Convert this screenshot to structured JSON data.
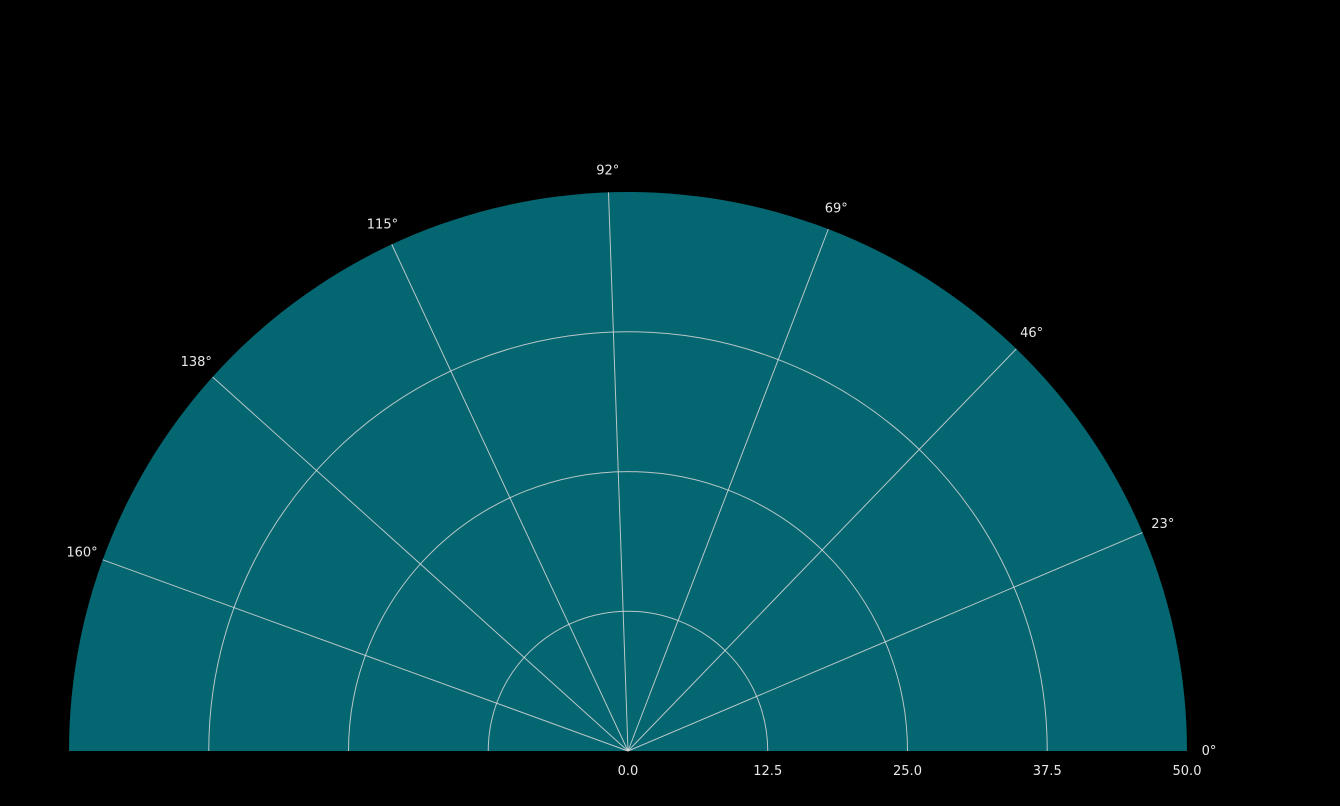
{
  "chart_data": {
    "type": "polar",
    "subtype": "half-polar",
    "theta_range_deg": [
      0,
      180
    ],
    "r_range": [
      0,
      50
    ],
    "angular_ticks": [
      "0°",
      "23°",
      "46°",
      "69°",
      "92°",
      "115°",
      "138°",
      "160°"
    ],
    "angular_tick_values_deg": [
      0,
      23,
      46,
      69,
      92,
      115,
      138,
      160
    ],
    "radial_ticks": [
      "0.0",
      "12.5",
      "25.0",
      "37.5",
      "50.0"
    ],
    "radial_tick_values": [
      0,
      12.5,
      25,
      37.5,
      50
    ],
    "series": [],
    "grid": true,
    "colors": {
      "background": "#000000",
      "plot_face": "#036670",
      "grid": "#d8d8d8",
      "text": "#e8e8e8"
    }
  }
}
